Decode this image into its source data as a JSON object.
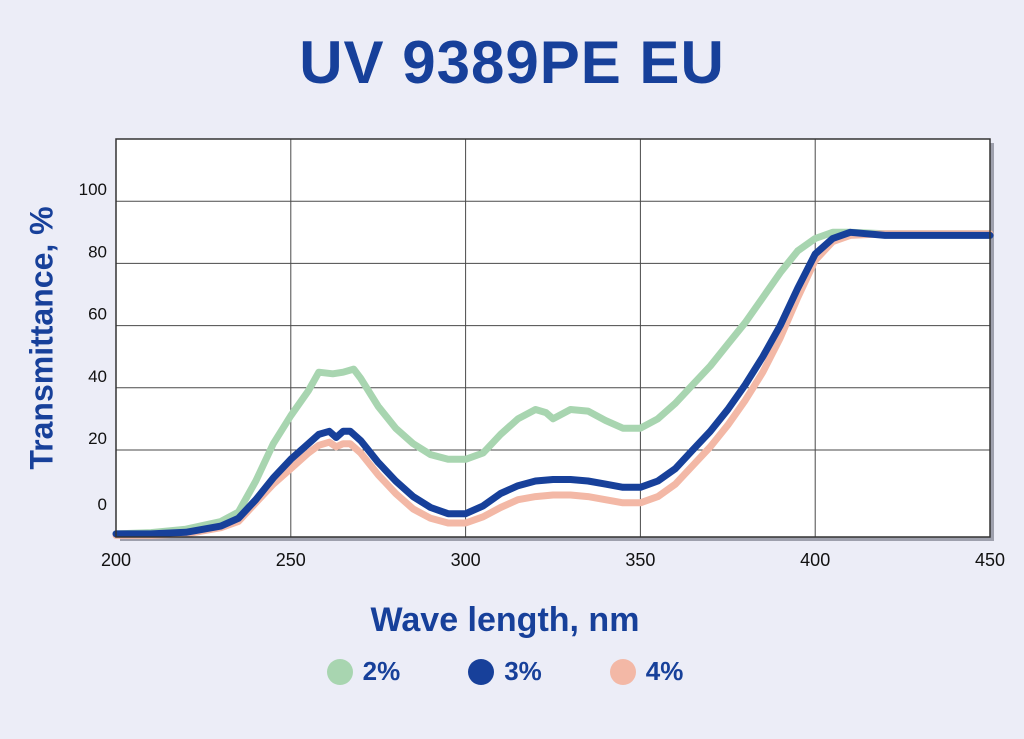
{
  "colors": {
    "background": "#ecedf7",
    "title": "#17409a",
    "plot_background": "#ffffff",
    "grid": "#4a4a4a"
  },
  "chart_data": {
    "type": "line",
    "title": "UV 9389PE EU",
    "xlabel": "Wave length, nm",
    "ylabel": "Transmittance, %",
    "xlim": [
      200,
      450
    ],
    "ylim": [
      -8,
      120
    ],
    "x_ticks": [
      200,
      250,
      300,
      350,
      400,
      450
    ],
    "y_ticks": [
      0,
      20,
      40,
      60,
      80,
      100
    ],
    "grid": true,
    "legend_position": "bottom",
    "series": [
      {
        "name": "2%",
        "color": "#a8d5b0",
        "points": [
          [
            200,
            -7
          ],
          [
            210,
            -6.6
          ],
          [
            220,
            -5.5
          ],
          [
            230,
            -3
          ],
          [
            235,
            0
          ],
          [
            240,
            10
          ],
          [
            245,
            22
          ],
          [
            250,
            31
          ],
          [
            255,
            39
          ],
          [
            258,
            45
          ],
          [
            262,
            44.5
          ],
          [
            265,
            45
          ],
          [
            268,
            46
          ],
          [
            270,
            43
          ],
          [
            275,
            34
          ],
          [
            280,
            27
          ],
          [
            285,
            22
          ],
          [
            290,
            18.5
          ],
          [
            295,
            17
          ],
          [
            300,
            17
          ],
          [
            305,
            19
          ],
          [
            310,
            25
          ],
          [
            315,
            30
          ],
          [
            320,
            33
          ],
          [
            323,
            32
          ],
          [
            325,
            30
          ],
          [
            330,
            33
          ],
          [
            335,
            32.5
          ],
          [
            340,
            29.5
          ],
          [
            345,
            27
          ],
          [
            350,
            27
          ],
          [
            355,
            30
          ],
          [
            360,
            35
          ],
          [
            365,
            41
          ],
          [
            370,
            47
          ],
          [
            375,
            54
          ],
          [
            380,
            61
          ],
          [
            385,
            69
          ],
          [
            390,
            77
          ],
          [
            395,
            84
          ],
          [
            400,
            88
          ],
          [
            405,
            90
          ],
          [
            410,
            90
          ],
          [
            420,
            89.5
          ],
          [
            430,
            89.5
          ],
          [
            440,
            89.5
          ],
          [
            450,
            89.5
          ]
        ]
      },
      {
        "name": "3%",
        "color": "#17409a",
        "points": [
          [
            200,
            -7
          ],
          [
            210,
            -7
          ],
          [
            220,
            -6.5
          ],
          [
            230,
            -4.5
          ],
          [
            235,
            -2
          ],
          [
            240,
            4
          ],
          [
            245,
            11
          ],
          [
            250,
            17
          ],
          [
            255,
            22
          ],
          [
            258,
            25
          ],
          [
            261,
            26
          ],
          [
            263,
            24
          ],
          [
            265,
            26
          ],
          [
            267,
            26
          ],
          [
            270,
            23
          ],
          [
            275,
            16
          ],
          [
            280,
            10
          ],
          [
            285,
            5
          ],
          [
            290,
            1.5
          ],
          [
            295,
            -0.5
          ],
          [
            300,
            -0.5
          ],
          [
            305,
            2
          ],
          [
            310,
            6
          ],
          [
            315,
            8.5
          ],
          [
            320,
            10
          ],
          [
            325,
            10.5
          ],
          [
            330,
            10.5
          ],
          [
            335,
            10
          ],
          [
            340,
            9
          ],
          [
            345,
            8
          ],
          [
            350,
            8
          ],
          [
            355,
            10
          ],
          [
            360,
            14
          ],
          [
            365,
            20
          ],
          [
            370,
            26
          ],
          [
            375,
            33
          ],
          [
            380,
            41
          ],
          [
            385,
            50
          ],
          [
            390,
            60
          ],
          [
            395,
            72
          ],
          [
            400,
            83
          ],
          [
            405,
            88
          ],
          [
            410,
            90
          ],
          [
            420,
            89
          ],
          [
            430,
            89
          ],
          [
            440,
            89
          ],
          [
            450,
            89
          ]
        ]
      },
      {
        "name": "4%",
        "color": "#f3b8a6",
        "points": [
          [
            200,
            -7.5
          ],
          [
            210,
            -7.5
          ],
          [
            220,
            -7
          ],
          [
            230,
            -5
          ],
          [
            235,
            -3
          ],
          [
            240,
            3
          ],
          [
            245,
            9
          ],
          [
            250,
            14
          ],
          [
            255,
            19
          ],
          [
            258,
            21.5
          ],
          [
            261,
            22.5
          ],
          [
            263,
            21
          ],
          [
            265,
            22
          ],
          [
            267,
            22
          ],
          [
            270,
            19
          ],
          [
            275,
            12
          ],
          [
            280,
            6
          ],
          [
            285,
            1
          ],
          [
            290,
            -2
          ],
          [
            295,
            -3.5
          ],
          [
            300,
            -3.5
          ],
          [
            305,
            -1.5
          ],
          [
            310,
            1.5
          ],
          [
            315,
            4
          ],
          [
            320,
            5
          ],
          [
            325,
            5.5
          ],
          [
            330,
            5.5
          ],
          [
            335,
            5
          ],
          [
            340,
            4
          ],
          [
            345,
            3
          ],
          [
            350,
            3
          ],
          [
            355,
            5
          ],
          [
            360,
            9
          ],
          [
            365,
            15
          ],
          [
            370,
            21
          ],
          [
            375,
            28
          ],
          [
            380,
            36
          ],
          [
            385,
            45
          ],
          [
            390,
            56
          ],
          [
            395,
            69
          ],
          [
            400,
            81
          ],
          [
            405,
            87
          ],
          [
            410,
            89
          ],
          [
            420,
            89.5
          ],
          [
            430,
            89.5
          ],
          [
            440,
            89.5
          ],
          [
            450,
            89.5
          ]
        ]
      }
    ]
  }
}
